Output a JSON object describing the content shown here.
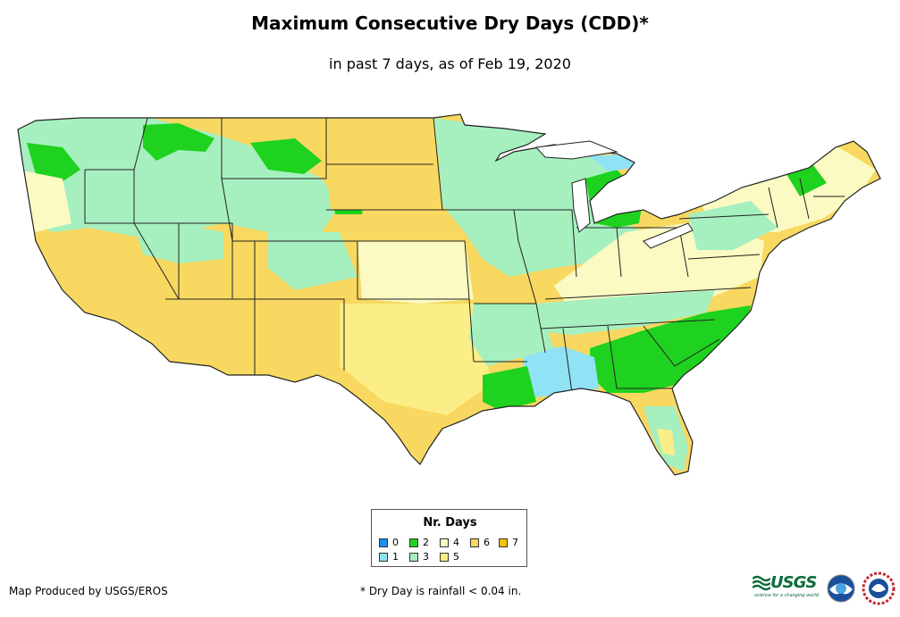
{
  "title": "Maximum Consecutive Dry Days (CDD)*",
  "subtitle": "in past 7 days, as of Feb 19, 2020",
  "legend": {
    "title": "Nr. Days",
    "items": [
      {
        "label": "0",
        "color": "#1f8ef0"
      },
      {
        "label": "1",
        "color": "#8fe3f5"
      },
      {
        "label": "2",
        "color": "#1fd21f"
      },
      {
        "label": "3",
        "color": "#a6f0c0"
      },
      {
        "label": "4",
        "color": "#fafac2"
      },
      {
        "label": "5",
        "color": "#fbee86"
      },
      {
        "label": "6",
        "color": "#f8d860"
      },
      {
        "label": "7",
        "color": "#f5c400"
      }
    ]
  },
  "credit": "Map Produced by USGS/EROS",
  "footnote": "* Dry Day is rainfall < 0.04 in.",
  "logos": {
    "usgs": "USGS",
    "usgs_tagline": "science for a changing world"
  },
  "colors": {
    "border": "#222222",
    "background": "#ffffff"
  }
}
